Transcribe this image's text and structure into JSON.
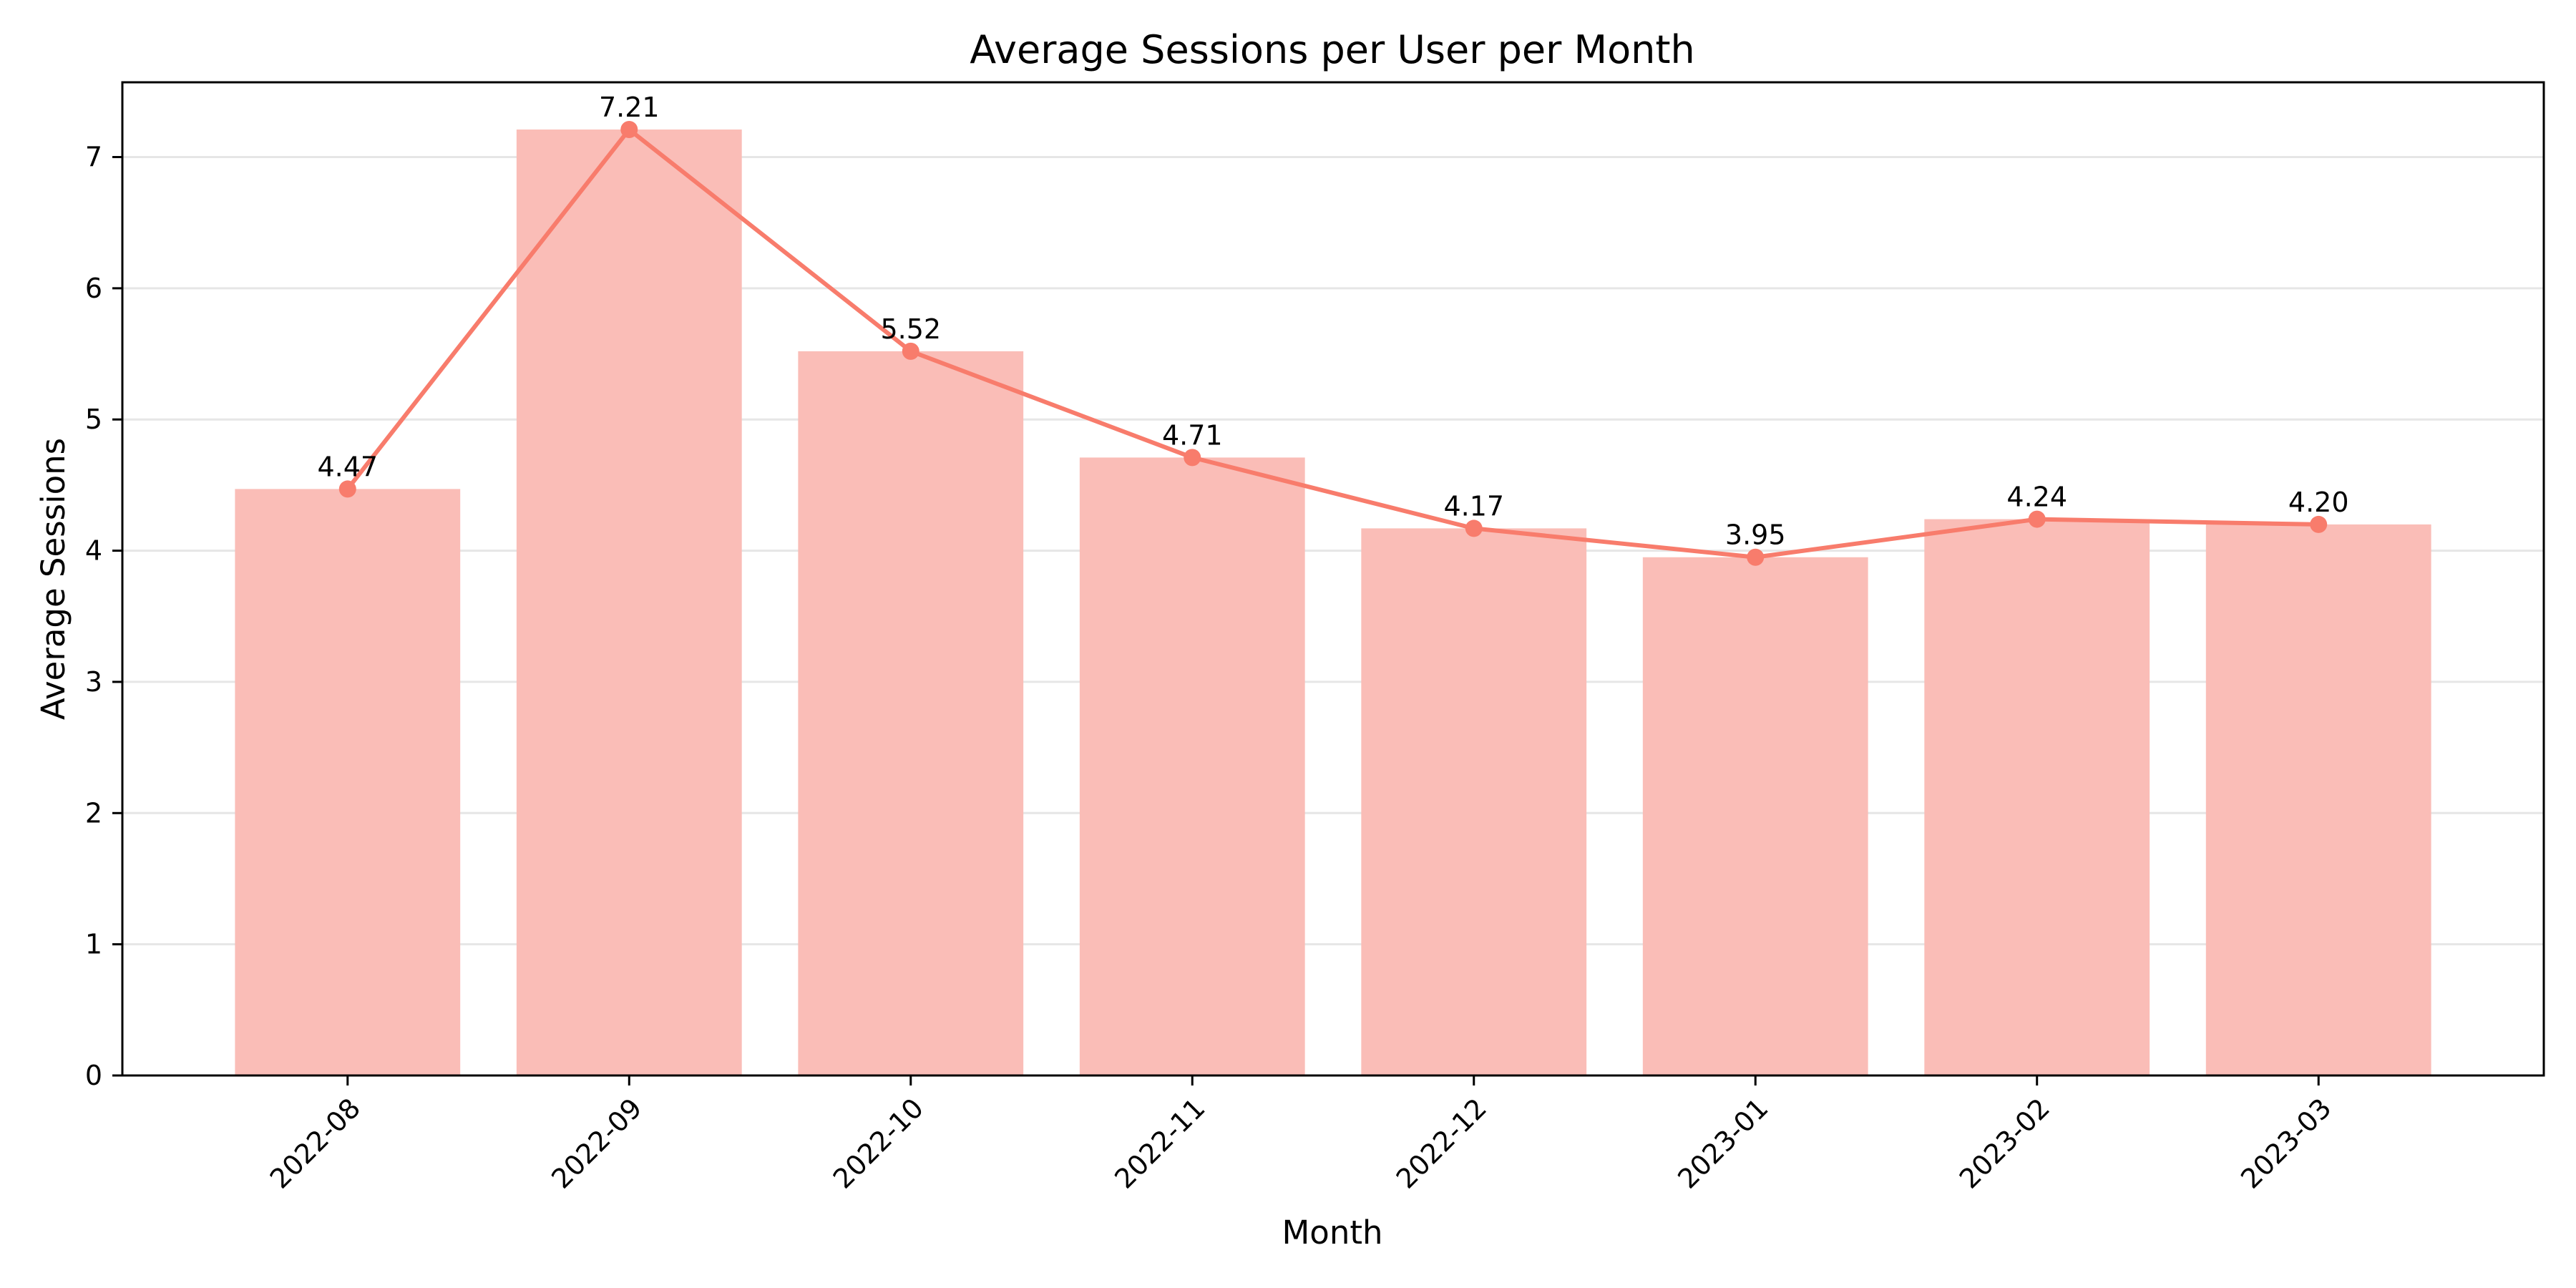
{
  "chart_data": {
    "type": "bar",
    "title": "Average Sessions per User per Month",
    "xlabel": "Month",
    "ylabel": "Average Sessions",
    "categories": [
      "2022-08",
      "2022-09",
      "2022-10",
      "2022-11",
      "2022-12",
      "2023-01",
      "2023-02",
      "2023-03"
    ],
    "values": [
      4.47,
      7.21,
      5.52,
      4.71,
      4.17,
      3.95,
      4.24,
      4.2
    ],
    "data_labels": [
      "4.47",
      "7.21",
      "5.52",
      "4.71",
      "4.17",
      "3.95",
      "4.24",
      "4.20"
    ],
    "overlay": {
      "type": "line",
      "markers": true
    },
    "ylim": [
      0,
      7.57
    ],
    "yticks": [
      0,
      1,
      2,
      3,
      4,
      5,
      6,
      7
    ],
    "grid": "y",
    "legend": "none",
    "colors": {
      "bar": "#fabdb7",
      "line": "#f87c6c",
      "grid": "#e6e6e6"
    }
  }
}
